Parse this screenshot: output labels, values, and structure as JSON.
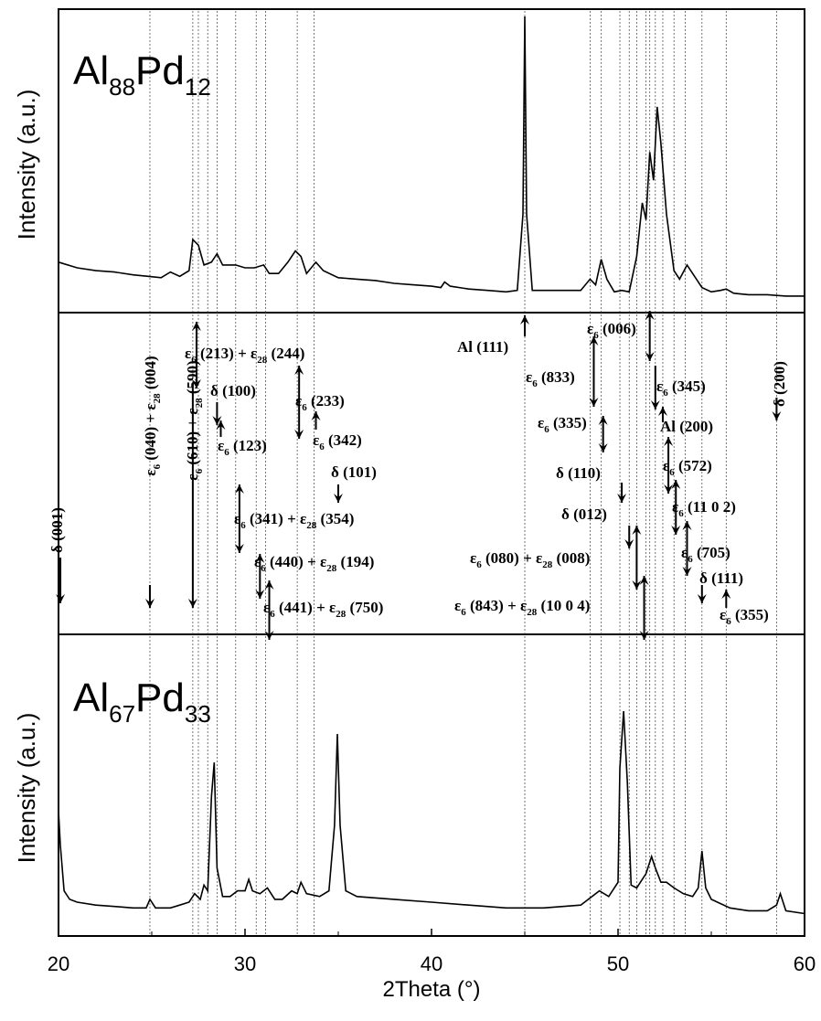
{
  "chart_data": {
    "type": "line",
    "xlabel": "2Theta (°)",
    "xlim": [
      20,
      60
    ],
    "x_ticks": [
      "20",
      "30",
      "40",
      "50",
      "60"
    ],
    "panels": [
      {
        "id": "top",
        "ylabel": "Intensity (a.u.)",
        "sample_base": "Al",
        "sample_sub1": "88",
        "sample_mid": "Pd",
        "sample_sub2": "12",
        "ylim": [
          0,
          100
        ],
        "series": [
          {
            "x": [
              20,
              21,
              22,
              23,
              24,
              24.8,
              25.5,
              26,
              26.5,
              27,
              27.2,
              27.5,
              27.8,
              28.2,
              28.5,
              28.8,
              29.2,
              29.5,
              30,
              30.5,
              31,
              31.3,
              31.8,
              32.3,
              32.7,
              33.0,
              33.3,
              33.8,
              34.2,
              35,
              36,
              37,
              38,
              39,
              40,
              40.5,
              40.7,
              41,
              42,
              43,
              44,
              44.6,
              44.9,
              45.0,
              45.1,
              45.4,
              46,
              47,
              47.5,
              48,
              48.5,
              48.8,
              49.1,
              49.4,
              49.8,
              50.2,
              50.6,
              51,
              51.3,
              51.5,
              51.7,
              51.9,
              52.1,
              52.3,
              52.6,
              53,
              53.3,
              53.7,
              54,
              54.5,
              55,
              55.5,
              55.8,
              56.2,
              57,
              58,
              59,
              60
            ],
            "y": [
              13,
              11,
              10,
              9.5,
              8.5,
              8,
              7.5,
              9.5,
              8,
              10,
              21,
              19,
              12,
              13,
              16,
              12,
              12,
              12,
              11,
              11,
              12,
              9,
              9,
              13,
              17,
              15,
              9,
              13,
              10,
              7.5,
              7,
              6.5,
              5.5,
              5,
              4.5,
              4,
              6,
              4.5,
              3.5,
              3,
              2.5,
              3,
              30,
              100,
              30,
              3,
              3,
              3,
              3,
              3,
              7,
              5,
              14,
              7,
              2.5,
              3,
              2.5,
              15,
              34,
              28,
              52,
              42,
              68,
              55,
              30,
              10,
              7,
              12,
              9,
              4,
              2.5,
              3,
              3.5,
              2,
              1.5,
              1.5,
              1,
              1
            ]
          }
        ]
      },
      {
        "id": "bottom",
        "ylabel": "Intensity (a.u.)",
        "sample_base": "Al",
        "sample_sub1": "67",
        "sample_mid": "Pd",
        "sample_sub2": "33",
        "ylim": [
          0,
          100
        ],
        "series": [
          {
            "x": [
              20,
              20.1,
              20.3,
              20.6,
              21,
              22,
              23,
              24,
              24.7,
              24.9,
              25.2,
              26,
              26.5,
              27,
              27.3,
              27.6,
              27.8,
              28.0,
              28.2,
              28.35,
              28.5,
              28.8,
              29.2,
              29.6,
              30,
              30.2,
              30.4,
              30.8,
              31.2,
              31.6,
              32,
              32.5,
              32.8,
              33.0,
              33.3,
              34,
              34.5,
              34.8,
              34.95,
              35.1,
              35.4,
              36,
              38,
              40,
              42,
              44,
              46,
              48,
              49,
              49.5,
              50,
              50.1,
              50.3,
              50.5,
              50.7,
              51,
              51.3,
              51.5,
              51.8,
              52,
              52.3,
              52.6,
              53,
              53.5,
              54,
              54.3,
              54.5,
              54.7,
              55,
              56,
              57,
              58,
              58.5,
              58.7,
              59,
              60
            ],
            "y": [
              40,
              28,
              12,
              9,
              8,
              7,
              6.5,
              6,
              6,
              9,
              6,
              6,
              7,
              8,
              11,
              9,
              14,
              12,
              45,
              57,
              20,
              10,
              10,
              12,
              12,
              16,
              12,
              11,
              13,
              9,
              9,
              12,
              11,
              15,
              11,
              10,
              12,
              35,
              67,
              35,
              12,
              10,
              9,
              8,
              7,
              6,
              6,
              7,
              12,
              10,
              15,
              55,
              75,
              50,
              14,
              13,
              16,
              18,
              24,
              20,
              15,
              15,
              13,
              11,
              10,
              13,
              26,
              13,
              9,
              6,
              5,
              5,
              7,
              11,
              5,
              4
            ]
          }
        ]
      }
    ],
    "annotations": [
      {
        "label": "δ (001)",
        "x": 20.1,
        "dir": "down"
      },
      {
        "label": "ε6 (040) + ε28 (004)",
        "x": 24.9,
        "dir": "down"
      },
      {
        "label": "ε6 (610) + ε28 (590)",
        "x": 27.2,
        "dir": "down"
      },
      {
        "label": "ε6 (213) + ε28 (244)",
        "x": 27.4,
        "dir": "both"
      },
      {
        "label": "δ (100)",
        "x": 28.5,
        "dir": "down"
      },
      {
        "label": "ε6 (123)",
        "x": 28.7,
        "dir": "up"
      },
      {
        "label": "ε6 (341) + ε28 (354)",
        "x": 29.7,
        "dir": "both"
      },
      {
        "label": "ε6 (440) + ε28 (194)",
        "x": 30.8,
        "dir": "both"
      },
      {
        "label": "ε6 (441) + ε28 (750)",
        "x": 31.3,
        "dir": "both"
      },
      {
        "label": "ε6 (233)",
        "x": 32.9,
        "dir": "both"
      },
      {
        "label": "ε6 (342)",
        "x": 33.8,
        "dir": "up"
      },
      {
        "label": "δ (101)",
        "x": 35.0,
        "dir": "down"
      },
      {
        "label": "Al (111)",
        "x": 45.0,
        "dir": "up"
      },
      {
        "label": "ε6 (006)",
        "x": 51.7,
        "dir": "both"
      },
      {
        "label": "ε6 (833)",
        "x": 48.7,
        "dir": "both"
      },
      {
        "label": "ε6 (335)",
        "x": 49.2,
        "dir": "both"
      },
      {
        "label": "δ (110)",
        "x": 50.2,
        "dir": "down"
      },
      {
        "label": "δ (012)",
        "x": 50.6,
        "dir": "down"
      },
      {
        "label": "ε6 (080) + ε28 (008)",
        "x": 51.0,
        "dir": "both"
      },
      {
        "label": "ε6 (843) + ε28 (10 0 4)",
        "x": 51.4,
        "dir": "both"
      },
      {
        "label": "ε6 (345)",
        "x": 52.0,
        "dir": "down"
      },
      {
        "label": "Al (200)",
        "x": 52.4,
        "dir": "up"
      },
      {
        "label": "ε6 (572)",
        "x": 52.7,
        "dir": "both"
      },
      {
        "label": "ε6 (11 0 2)",
        "x": 53.1,
        "dir": "both"
      },
      {
        "label": "ε6 (705)",
        "x": 53.7,
        "dir": "both"
      },
      {
        "label": "δ (111)",
        "x": 54.5,
        "dir": "down"
      },
      {
        "label": "ε6 (355)",
        "x": 55.8,
        "dir": "up"
      },
      {
        "label": "δ (200)",
        "x": 58.5,
        "dir": "down"
      }
    ],
    "ref_lines_x": [
      24.9,
      27.2,
      27.5,
      28.0,
      28.5,
      29.5,
      30.6,
      31.1,
      32.8,
      33.7,
      45.0,
      48.5,
      49.1,
      50.1,
      50.6,
      51.0,
      51.5,
      51.7,
      52.0,
      52.4,
      53.0,
      53.6,
      54.5,
      55.8,
      58.5
    ],
    "grid": false,
    "legend": "none"
  }
}
